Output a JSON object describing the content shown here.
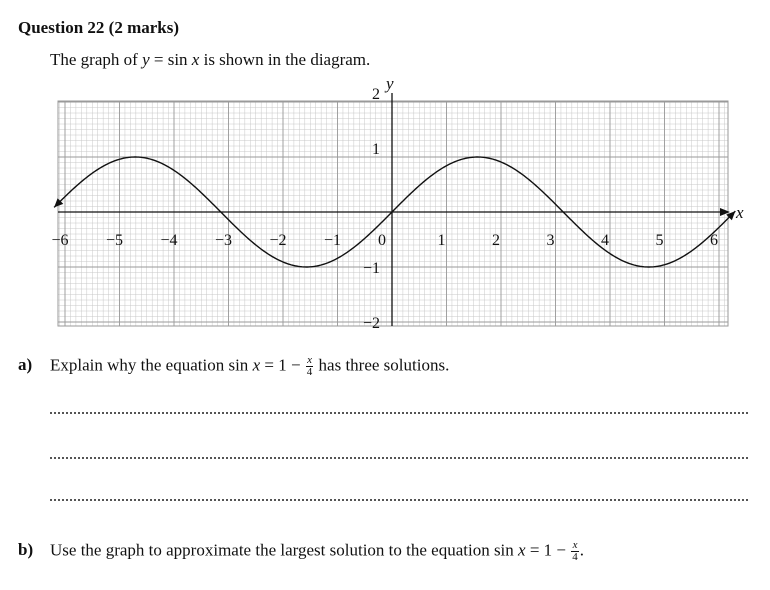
{
  "question": {
    "title": "Question 22 (2 marks)",
    "intro_pre": "The graph of ",
    "intro_var_y": "y",
    "intro_eq": " = sin ",
    "intro_var_x": "x",
    "intro_post": " is shown in the diagram."
  },
  "graph": {
    "x_axis_label": "x",
    "y_axis_label": "y",
    "origin_label": "0",
    "x_tick_labels": [
      "−6",
      "−5",
      "−4",
      "−3",
      "−2",
      "−1",
      "1",
      "2",
      "3",
      "4",
      "5",
      "6"
    ],
    "y_tick_labels": [
      "2",
      "1",
      "−1",
      "−2"
    ],
    "curve_color": "#111111",
    "grid_minor_color": "#c8c8c8",
    "grid_major_color": "#9a9a9a"
  },
  "chart_data": {
    "type": "line",
    "title": "",
    "xlabel": "x",
    "ylabel": "y",
    "series": [
      {
        "name": "y = sin x",
        "function": "sin x"
      }
    ],
    "xlim": [
      -6.2,
      6.3
    ],
    "ylim": [
      -2,
      2
    ],
    "x_ticks": [
      -6,
      -5,
      -4,
      -3,
      -2,
      -1,
      0,
      1,
      2,
      3,
      4,
      5,
      6
    ],
    "y_ticks": [
      -2,
      -1,
      1,
      2
    ],
    "grid": true
  },
  "part_a": {
    "label": "a)",
    "text_pre": "Explain why the equation sin ",
    "var": "x",
    "text_mid": " = 1 − ",
    "frac_num": "x",
    "frac_den": "4",
    "text_post": " has three solutions."
  },
  "part_b": {
    "label": "b)",
    "text_pre": "Use the graph to approximate the largest solution to the equation sin ",
    "var": "x",
    "text_mid": " = 1 − ",
    "frac_num": "x",
    "frac_den": "4",
    "text_post": "."
  }
}
